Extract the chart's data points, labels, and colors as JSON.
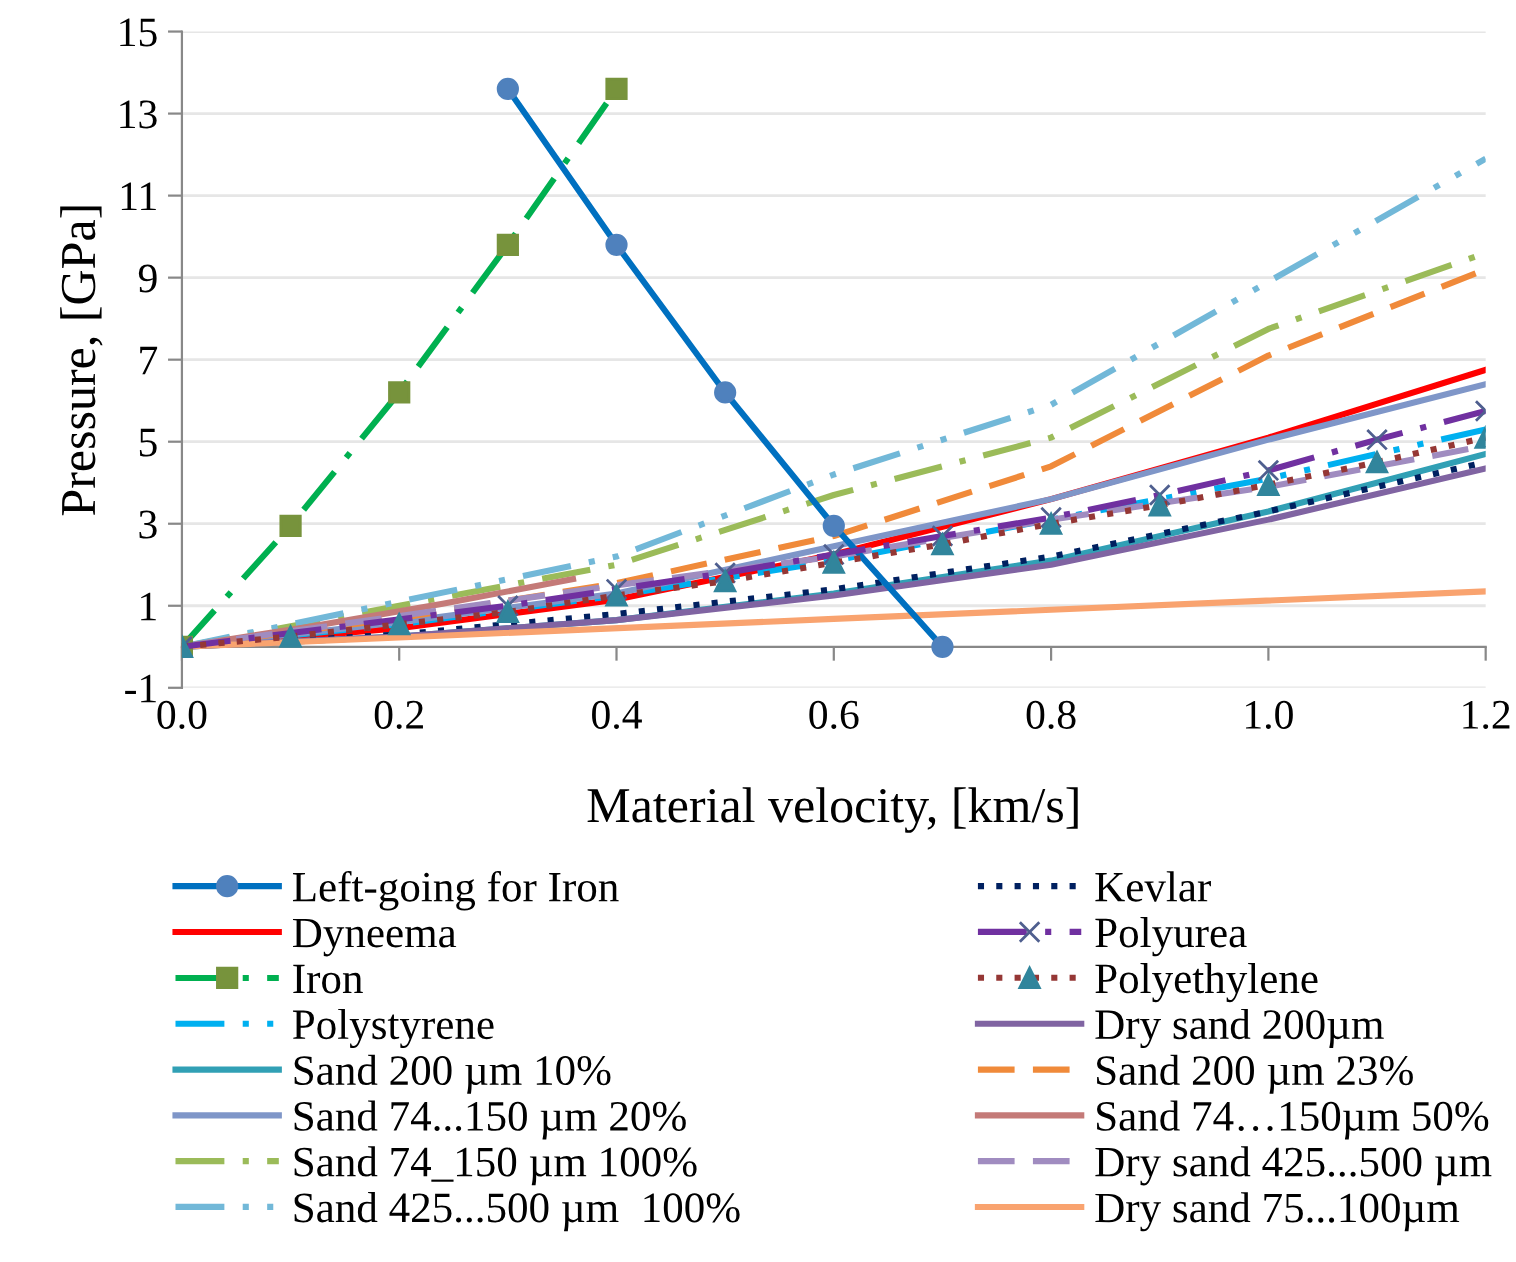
{
  "chart_data": {
    "type": "line",
    "xlabel": "Material velocity, [km/s]",
    "ylabel": "Pressure, [GPa]",
    "xlim": [
      0,
      1.2
    ],
    "xticks": [
      {
        "value": 0,
        "label": "0.0"
      },
      0.2,
      0.4,
      0.6,
      0.8,
      {
        "value": 1.0,
        "label": "1.0"
      },
      1.2
    ],
    "ylim": [
      -1,
      15
    ],
    "yticks": [
      -1,
      1,
      3,
      5,
      7,
      9,
      11,
      13,
      15
    ],
    "grid": "y",
    "legend": "bottom",
    "series": [
      {
        "name": "Left-going for Iron",
        "color": "#0070c0",
        "marker": "circle",
        "line_style": "solid",
        "x": [
          0.3,
          0.4,
          0.5,
          0.6,
          0.7
        ],
        "values": [
          13.6,
          9.8,
          6.2,
          2.95,
          0
        ]
      },
      {
        "name": "Dyneema",
        "color": "#ff0000",
        "line_style": "solid",
        "x": [
          0,
          0.2,
          0.4,
          0.6,
          0.8,
          1.0,
          1.2
        ],
        "values": [
          0,
          0.45,
          1.15,
          2.25,
          3.6,
          5.1,
          6.75
        ]
      },
      {
        "name": "Iron",
        "color": "#00b050",
        "marker": "square",
        "line_style": "dashdot",
        "x": [
          0,
          0.1,
          0.2,
          0.3,
          0.4
        ],
        "values": [
          0,
          2.95,
          6.2,
          9.8,
          13.6
        ]
      },
      {
        "name": "Polystyrene",
        "color": "#00b0f0",
        "line_style": "dashdotdot",
        "x": [
          0,
          0.2,
          0.4,
          0.6,
          0.8,
          1.0,
          1.2
        ],
        "values": [
          0,
          0.55,
          1.25,
          2.1,
          3.1,
          4.1,
          5.3
        ]
      },
      {
        "name": "Sand 200 µm 10%",
        "color": "#31a0b5",
        "line_style": "solid",
        "x": [
          0,
          0.2,
          0.4,
          0.6,
          0.8,
          1.0,
          1.2
        ],
        "values": [
          0,
          0.25,
          0.65,
          1.3,
          2.1,
          3.3,
          4.7
        ]
      },
      {
        "name": "Sand 74...150 µm 20%",
        "color": "#7f96c8",
        "line_style": "solid",
        "x": [
          0,
          0.2,
          0.4,
          0.6,
          0.8,
          1.0,
          1.2
        ],
        "values": [
          0,
          0.6,
          1.3,
          2.45,
          3.6,
          5.05,
          6.4
        ]
      },
      {
        "name": "Sand 74_150 µm 100%",
        "color": "#9bbb59",
        "line_style": "dashdot",
        "x": [
          0,
          0.2,
          0.4,
          0.6,
          0.8,
          1.0,
          1.2
        ],
        "values": [
          0,
          1.0,
          2.0,
          3.7,
          5.1,
          7.75,
          9.6
        ]
      },
      {
        "name": "Sand 425...500 µm  100%",
        "color": "#72b8d8",
        "line_style": "dashdotdot",
        "x": [
          0,
          0.2,
          0.4,
          0.6,
          0.8,
          1.0,
          1.2
        ],
        "values": [
          0,
          1.1,
          2.2,
          4.2,
          5.9,
          8.9,
          11.9
        ]
      },
      {
        "name": "Kevlar",
        "color": "#002060",
        "line_style": "dotted",
        "x": [
          0,
          0.2,
          0.4,
          0.6,
          0.8,
          1.0,
          1.2
        ],
        "values": [
          0,
          0.3,
          0.8,
          1.4,
          2.2,
          3.3,
          4.5
        ]
      },
      {
        "name": "Polyurea",
        "color": "#7030a0",
        "marker": "cross",
        "line_style": "dashdot",
        "x": [
          0,
          0.3,
          0.4,
          0.5,
          0.6,
          0.7,
          0.8,
          0.9,
          1.0,
          1.1,
          1.2
        ],
        "values": [
          0,
          1.0,
          1.4,
          1.8,
          2.25,
          2.7,
          3.15,
          3.7,
          4.3,
          5.05,
          5.75
        ]
      },
      {
        "name": "Polyethylene",
        "color": "#953735",
        "marker": "triangle",
        "line_style": "dotted",
        "x": [
          0,
          0.1,
          0.2,
          0.3,
          0.4,
          0.5,
          0.6,
          0.7,
          0.8,
          0.9,
          1.0,
          1.1,
          1.2
        ],
        "values": [
          0,
          0.25,
          0.55,
          0.85,
          1.25,
          1.6,
          2.05,
          2.5,
          3.0,
          3.45,
          3.95,
          4.5,
          5.1
        ]
      },
      {
        "name": "Dry sand 200µm",
        "color": "#8064a2",
        "line_style": "solid",
        "x": [
          0,
          0.2,
          0.4,
          0.6,
          0.8,
          1.0,
          1.2
        ],
        "values": [
          0,
          0.25,
          0.65,
          1.25,
          2.0,
          3.1,
          4.35
        ]
      },
      {
        "name": "Sand 200 µm 23%",
        "color": "#f08a3a",
        "line_style": "dashed",
        "x": [
          0,
          0.2,
          0.4,
          0.6,
          0.8,
          1.0,
          1.2
        ],
        "values": [
          0,
          0.7,
          1.55,
          2.7,
          4.4,
          7.1,
          9.2
        ]
      },
      {
        "name": "Sand 74…150µm 50%",
        "color": "#c47a78",
        "line_style": "solid",
        "x": [
          0,
          0.12,
          0.24,
          0.36
        ],
        "values": [
          0,
          0.5,
          1.05,
          1.65
        ]
      },
      {
        "name": "Dry sand 425...500 µm",
        "color": "#a08cc0",
        "line_style": "dashed",
        "x": [
          0,
          0.2,
          0.4,
          0.6,
          0.8,
          1.0,
          1.2
        ],
        "values": [
          0,
          0.75,
          1.5,
          2.2,
          3.1,
          3.9,
          4.9
        ]
      },
      {
        "name": "Dry sand 75...100µm",
        "color": "#f9a36f",
        "line_style": "solid",
        "x": [
          0,
          0.6,
          1.2
        ],
        "values": [
          0,
          0.68,
          1.35
        ]
      }
    ]
  }
}
